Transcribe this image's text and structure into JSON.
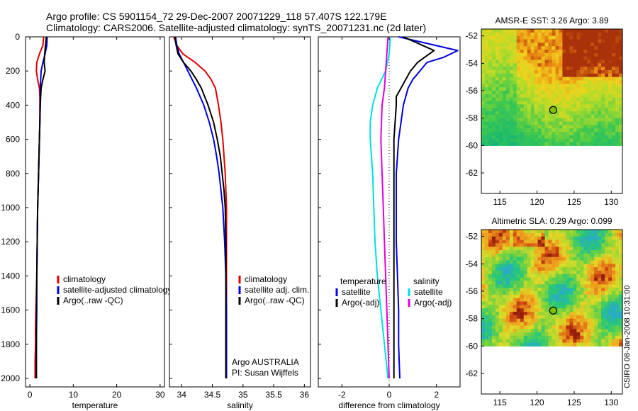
{
  "header": {
    "line1": "Argo profile: CS 5901154_72 29-Dec-2007 20071229_118 57.407S 122.179E",
    "line2": "Climatology: CARS2006. Satellite-adjusted climatology: synTS_20071231.nc (2d later)"
  },
  "stamp": "CSIRO 08-Jan-2008 10:31:00",
  "chart_data": [
    {
      "type": "line",
      "xlabel": "temperature",
      "xlim": [
        -1,
        31
      ],
      "ylim": [
        0,
        2050
      ],
      "y_reversed": true,
      "xticks": [
        0,
        10,
        20,
        30
      ],
      "yticks": [
        0,
        200,
        400,
        600,
        800,
        1000,
        1200,
        1400,
        1600,
        1800,
        2000
      ],
      "legend": {
        "placement": "lower-right",
        "entries": [
          "climatology",
          "satellite-adjusted climatology",
          "Argo(..raw -QC)"
        ]
      },
      "series": [
        {
          "name": "climatology",
          "color": "#e00000",
          "x": [
            3.2,
            3.0,
            2.2,
            1.6,
            1.5,
            1.8,
            2.2,
            2.3,
            2.3,
            2.3,
            2.2,
            2.1,
            2.0,
            1.9,
            1.8,
            1.7,
            1.6,
            1.5,
            1.4,
            1.3,
            1.3,
            1.2,
            1.2,
            1.2
          ],
          "y": [
            0,
            50,
            100,
            150,
            200,
            250,
            300,
            350,
            400,
            500,
            600,
            700,
            800,
            900,
            1000,
            1200,
            1400,
            1500,
            1600,
            1700,
            1800,
            1900,
            1950,
            2000
          ]
        },
        {
          "name": "satellite-adjusted climatology",
          "color": "#0000e0",
          "x": [
            4.0,
            3.9,
            3.5,
            3.0,
            2.6,
            2.5,
            2.4,
            2.4,
            2.3,
            2.2,
            2.1,
            2.0,
            1.9,
            1.8,
            1.7,
            1.6,
            1.6,
            1.5,
            1.5,
            1.5
          ],
          "y": [
            0,
            50,
            100,
            150,
            200,
            250,
            300,
            400,
            500,
            600,
            700,
            800,
            900,
            1000,
            1200,
            1400,
            1600,
            1800,
            1950,
            2000
          ]
        },
        {
          "name": "Argo(..raw -QC)",
          "color": "#000000",
          "x": [
            3.8,
            3.6,
            3.4,
            3.3,
            3.5,
            3.0,
            2.6,
            2.4,
            2.3,
            2.2,
            2.1,
            2.0,
            1.9,
            1.8,
            1.7,
            1.6,
            1.5,
            1.5,
            1.5
          ],
          "y": [
            0,
            50,
            100,
            150,
            200,
            250,
            300,
            400,
            500,
            600,
            700,
            800,
            900,
            1000,
            1200,
            1400,
            1600,
            1800,
            2000
          ]
        }
      ]
    },
    {
      "type": "line",
      "xlabel": "salinity",
      "xlim": [
        33.8,
        36.1
      ],
      "ylim": [
        0,
        2050
      ],
      "y_reversed": true,
      "xticks": [
        34,
        34.5,
        35,
        35.5,
        36
      ],
      "xtick_labels": [
        "34",
        "34.5",
        "35",
        "35.5",
        "36"
      ],
      "legend": {
        "placement": "lower-right",
        "entries": [
          "climatology",
          "satellite adj. clim.",
          "Argo(..raw -QC)"
        ]
      },
      "annotation": [
        "Argo AUSTRALIA",
        "PI: Susan Wijffels"
      ],
      "series": [
        {
          "name": "climatology",
          "color": "#e00000",
          "x": [
            33.87,
            33.92,
            34.02,
            34.22,
            34.38,
            34.48,
            34.55,
            34.6,
            34.64,
            34.67,
            34.69,
            34.71,
            34.72,
            34.73,
            34.73,
            34.73,
            34.73
          ],
          "y": [
            0,
            50,
            100,
            150,
            200,
            250,
            300,
            400,
            500,
            600,
            700,
            800,
            900,
            1000,
            1200,
            1600,
            2000
          ]
        },
        {
          "name": "satellite adj. clim.",
          "color": "#0000e0",
          "x": [
            33.9,
            33.92,
            33.96,
            34.03,
            34.1,
            34.17,
            34.24,
            34.36,
            34.45,
            34.52,
            34.57,
            34.61,
            34.64,
            34.67,
            34.7,
            34.72,
            34.73,
            34.73,
            34.73
          ],
          "y": [
            0,
            50,
            100,
            150,
            200,
            250,
            300,
            400,
            500,
            600,
            700,
            800,
            900,
            1000,
            1200,
            1400,
            1600,
            1800,
            2000
          ]
        },
        {
          "name": "Argo(..raw -QC)",
          "color": "#000000",
          "x": [
            33.89,
            33.91,
            33.94,
            34.03,
            34.15,
            34.24,
            34.32,
            34.43,
            34.52,
            34.58,
            34.63,
            34.66,
            34.69,
            34.71,
            34.72,
            34.72,
            34.72,
            34.72,
            34.72
          ],
          "y": [
            0,
            50,
            100,
            150,
            200,
            250,
            300,
            400,
            500,
            600,
            700,
            800,
            900,
            1000,
            1200,
            1400,
            1600,
            1800,
            2000
          ]
        }
      ]
    },
    {
      "type": "line",
      "xlabel": "difference from climatology",
      "xlim": [
        -3,
        3
      ],
      "ylim": [
        0,
        2050
      ],
      "y_reversed": true,
      "xticks": [
        -2,
        0,
        2
      ],
      "zero_line": true,
      "legend": {
        "placement": "lower-center",
        "group_titles": [
          "temperature",
          "salinity"
        ],
        "entries": [
          "satellite",
          "Argo(-adj)",
          "satellite",
          "Argo(-adj)"
        ]
      },
      "series": [
        {
          "name": "satellite",
          "group": "temperature",
          "color": "#0000e0",
          "x": [
            0.4,
            2.9,
            2.3,
            1.6,
            1.3,
            1.0,
            0.8,
            0.6,
            0.5,
            0.4,
            0.35,
            0.3,
            0.3,
            0.3,
            0.35,
            0.4,
            0.4,
            0.45
          ],
          "y": [
            0,
            80,
            120,
            150,
            200,
            250,
            300,
            400,
            500,
            600,
            700,
            800,
            1000,
            1200,
            1400,
            1600,
            1800,
            2000
          ]
        },
        {
          "name": "Argo(-adj)",
          "group": "temperature",
          "color": "#000000",
          "x": [
            0.6,
            1.9,
            1.2,
            0.9,
            0.7,
            0.5,
            0.3,
            0.3,
            0.2,
            0.2,
            0.2,
            0.2,
            0.2,
            0.2
          ],
          "y": [
            0,
            80,
            150,
            200,
            250,
            300,
            350,
            400,
            600,
            800,
            1000,
            1400,
            1800,
            2000
          ]
        },
        {
          "name": "satellite",
          "group": "salinity",
          "color": "#00e0e0",
          "x": [
            0.05,
            0.0,
            -0.15,
            -0.5,
            -0.7,
            -0.8,
            -0.8,
            -0.7,
            -0.65,
            -0.6,
            -0.5,
            -0.35,
            -0.2,
            -0.05
          ],
          "y": [
            0,
            100,
            200,
            300,
            400,
            500,
            600,
            800,
            1000,
            1200,
            1400,
            1600,
            1800,
            2000
          ]
        },
        {
          "name": "Argo(-adj)",
          "group": "salinity",
          "color": "#e000e0",
          "x": [
            -0.05,
            -0.1,
            -0.15,
            -0.2,
            -0.3,
            -0.35,
            -0.3,
            -0.25,
            -0.2,
            -0.15,
            -0.1,
            -0.05,
            0.0
          ],
          "y": [
            0,
            100,
            200,
            300,
            400,
            600,
            800,
            1000,
            1200,
            1400,
            1600,
            1800,
            2000
          ]
        }
      ]
    },
    {
      "type": "heatmap",
      "title": "AMSR-E SST: 3.26 Argo: 3.89",
      "xlim": [
        112.5,
        131.5
      ],
      "ylim": [
        -63.5,
        -51.5
      ],
      "xticks": [
        115,
        120,
        125,
        130
      ],
      "yticks": [
        -52,
        -54,
        -56,
        -58,
        -60,
        -62
      ],
      "xtick_labels": [
        "115",
        "120",
        "125",
        "130"
      ],
      "ytick_labels": [
        "-52",
        "-54",
        "-56",
        "-58",
        "-60",
        "-62"
      ],
      "data_ylim": [
        -63.5,
        -60.0
      ],
      "marker": {
        "lon": 122.18,
        "lat": -57.41
      }
    },
    {
      "type": "heatmap",
      "title": "Altimetric SLA: 0.29 Argo: 0.099",
      "xlim": [
        112.5,
        131.5
      ],
      "ylim": [
        -63.5,
        -51.5
      ],
      "xticks": [
        115,
        120,
        125,
        130
      ],
      "yticks": [
        -52,
        -54,
        -56,
        -58,
        -60,
        -62
      ],
      "xtick_labels": [
        "115",
        "120",
        "125",
        "130"
      ],
      "ytick_labels": [
        "-52",
        "-54",
        "-56",
        "-58",
        "-60",
        "-62"
      ],
      "data_ylim": [
        -63.5,
        -60.0
      ],
      "marker": {
        "lon": 122.18,
        "lat": -57.41
      }
    }
  ]
}
